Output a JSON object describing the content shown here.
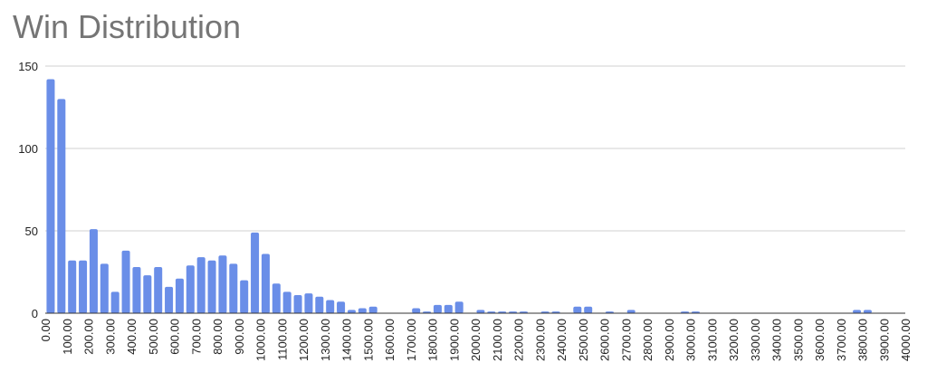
{
  "chart_data": {
    "type": "histogram",
    "title": "Win Distribution",
    "bins": [
      0,
      50,
      100,
      150,
      200,
      250,
      300,
      350,
      400,
      450,
      500,
      550,
      600,
      650,
      700,
      750,
      800,
      850,
      900,
      950,
      1000,
      1050,
      1100,
      1150,
      1200,
      1250,
      1300,
      1350,
      1400,
      1450,
      1500,
      1550,
      1600,
      1650,
      1700,
      1750,
      1800,
      1850,
      1900,
      1950,
      2000,
      2050,
      2100,
      2150,
      2200,
      2250,
      2300,
      2350,
      2400,
      2450,
      2500,
      2550,
      2600,
      2650,
      2700,
      2750,
      2800,
      2850,
      2900,
      2950,
      3000,
      3050,
      3100,
      3150,
      3200,
      3250,
      3300,
      3350,
      3400,
      3450,
      3500,
      3550,
      3600,
      3650,
      3700,
      3750,
      3800,
      3850,
      3900,
      3950,
      4000
    ],
    "values": [
      142,
      130,
      32,
      32,
      51,
      30,
      13,
      38,
      28,
      23,
      28,
      16,
      21,
      29,
      34,
      32,
      35,
      30,
      20,
      49,
      36,
      18,
      13,
      11,
      12,
      10,
      8,
      7,
      2,
      3,
      4,
      0,
      0,
      0,
      3,
      1,
      5,
      5,
      7,
      0,
      2,
      1,
      1,
      1,
      1,
      0,
      1,
      1,
      0,
      4,
      4,
      0,
      1,
      0,
      2,
      0,
      0,
      0,
      0,
      1,
      1,
      0,
      0,
      0,
      0,
      0,
      0,
      0,
      0,
      0,
      0,
      0,
      0,
      0,
      0,
      2,
      2,
      0,
      0,
      0
    ],
    "color": "#6a8ee8",
    "xlim": [
      0,
      4000
    ],
    "xticks": [
      {
        "value": 0,
        "label": "0.00"
      },
      {
        "value": 100,
        "label": "100.00"
      },
      {
        "value": 200,
        "label": "200.00"
      },
      {
        "value": 300,
        "label": "300.00"
      },
      {
        "value": 400,
        "label": "400.00"
      },
      {
        "value": 500,
        "label": "500.00"
      },
      {
        "value": 600,
        "label": "600.00"
      },
      {
        "value": 700,
        "label": "700.00"
      },
      {
        "value": 800,
        "label": "800.00"
      },
      {
        "value": 900,
        "label": "900.00"
      },
      {
        "value": 1000,
        "label": "1000.00"
      },
      {
        "value": 1100,
        "label": "1100.00"
      },
      {
        "value": 1200,
        "label": "1200.00"
      },
      {
        "value": 1300,
        "label": "1300.00"
      },
      {
        "value": 1400,
        "label": "1400.00"
      },
      {
        "value": 1500,
        "label": "1500.00"
      },
      {
        "value": 1600,
        "label": "1600.00"
      },
      {
        "value": 1700,
        "label": "1700.00"
      },
      {
        "value": 1800,
        "label": "1800.00"
      },
      {
        "value": 1900,
        "label": "1900.00"
      },
      {
        "value": 2000,
        "label": "2000.00"
      },
      {
        "value": 2100,
        "label": "2100.00"
      },
      {
        "value": 2200,
        "label": "2200.00"
      },
      {
        "value": 2300,
        "label": "2300.00"
      },
      {
        "value": 2400,
        "label": "2400.00"
      },
      {
        "value": 2500,
        "label": "2500.00"
      },
      {
        "value": 2600,
        "label": "2600.00"
      },
      {
        "value": 2700,
        "label": "2700.00"
      },
      {
        "value": 2800,
        "label": "2800.00"
      },
      {
        "value": 2900,
        "label": "2900.00"
      },
      {
        "value": 3000,
        "label": "3000.00"
      },
      {
        "value": 3100,
        "label": "3100.00"
      },
      {
        "value": 3200,
        "label": "3200.00"
      },
      {
        "value": 3300,
        "label": "3300.00"
      },
      {
        "value": 3400,
        "label": "3400.00"
      },
      {
        "value": 3500,
        "label": "3500.00"
      },
      {
        "value": 3600,
        "label": "3600.00"
      },
      {
        "value": 3700,
        "label": "3700.00"
      },
      {
        "value": 3800,
        "label": "3800.00"
      },
      {
        "value": 3900,
        "label": "3900.00"
      },
      {
        "value": 4000,
        "label": "4000.00"
      }
    ],
    "ylim": [
      0,
      150
    ],
    "yticks": [
      0,
      50,
      100,
      150
    ],
    "grid": true
  }
}
